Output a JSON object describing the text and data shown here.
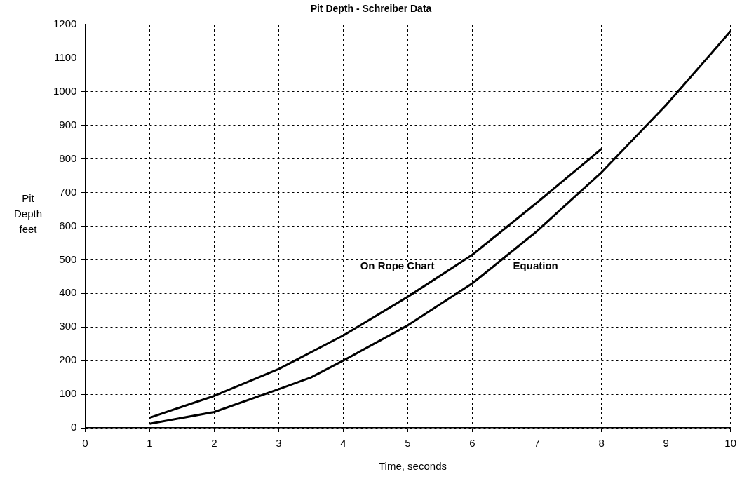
{
  "chart_data": {
    "type": "line",
    "title": "Pit Depth - Schreiber Data",
    "xlabel": "Time, seconds",
    "ylabel": "Pit Depth feet",
    "xlim": [
      0,
      10
    ],
    "xticks": [
      0,
      1,
      2,
      3,
      4,
      5,
      6,
      7,
      8,
      9,
      10
    ],
    "ylim": [
      0,
      1200
    ],
    "yticks": [
      0,
      100,
      200,
      300,
      400,
      500,
      600,
      700,
      800,
      900,
      1000,
      1100,
      1200
    ],
    "grid": true,
    "line_style": "solid",
    "marker": "none",
    "series": [
      {
        "name": "On Rope Chart",
        "color": "#000000",
        "x": [
          1,
          2,
          3,
          4,
          5,
          6,
          7,
          8
        ],
        "values": [
          30,
          95,
          175,
          275,
          390,
          515,
          670,
          830
        ]
      },
      {
        "name": "Equation",
        "color": "#000000",
        "x": [
          1,
          2,
          3,
          3.5,
          4,
          5,
          6,
          7,
          8,
          9,
          10
        ],
        "values": [
          12,
          47,
          115,
          150,
          200,
          305,
          430,
          585,
          760,
          960,
          1180
        ]
      }
    ]
  }
}
